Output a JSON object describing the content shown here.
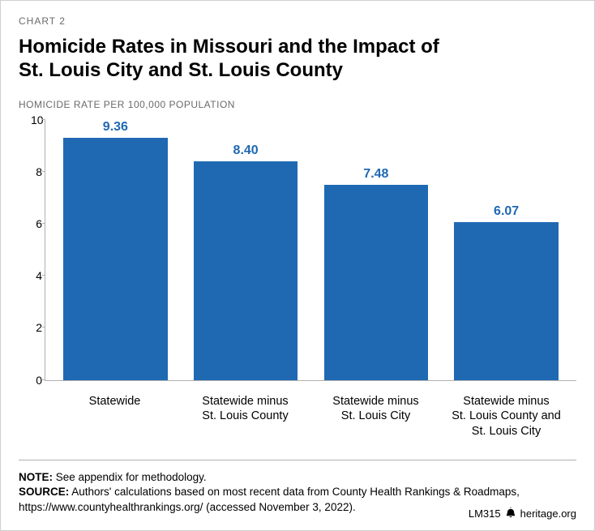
{
  "header": {
    "chart_number": "CHART 2",
    "title_line1": "Homicide Rates in Missouri and the Impact of",
    "title_line2": "St. Louis City and St. Louis County",
    "subtitle": "HOMICIDE RATE PER 100,000 POPULATION"
  },
  "chart": {
    "type": "bar",
    "ymax": 10,
    "ytick_step": 2,
    "bar_color": "#1f69b3",
    "value_color": "#1f69b3",
    "axis_color": "#b0b0b0",
    "background_color": "#ffffff",
    "bars": [
      {
        "label": "Statewide",
        "value": 9.36,
        "display": "9.36"
      },
      {
        "label": "Statewide minus St. Louis County",
        "value": 8.4,
        "display": "8.40"
      },
      {
        "label": "Statewide minus St. Louis City",
        "value": 7.48,
        "display": "7.48"
      },
      {
        "label": "Statewide minus St. Louis County and St. Louis City",
        "value": 6.07,
        "display": "6.07"
      }
    ]
  },
  "notes": {
    "note_label": "NOTE:",
    "note_text": " See appendix for methodology.",
    "source_label": "SOURCE:",
    "source_text": " Authors' calculations based on most recent data from County Health Rankings & Roadmaps, https://www.countyhealthrankings.org/ (accessed November 3, 2022)."
  },
  "footer": {
    "code": "LM315",
    "site": "heritage.org",
    "icon": "bell-icon"
  }
}
